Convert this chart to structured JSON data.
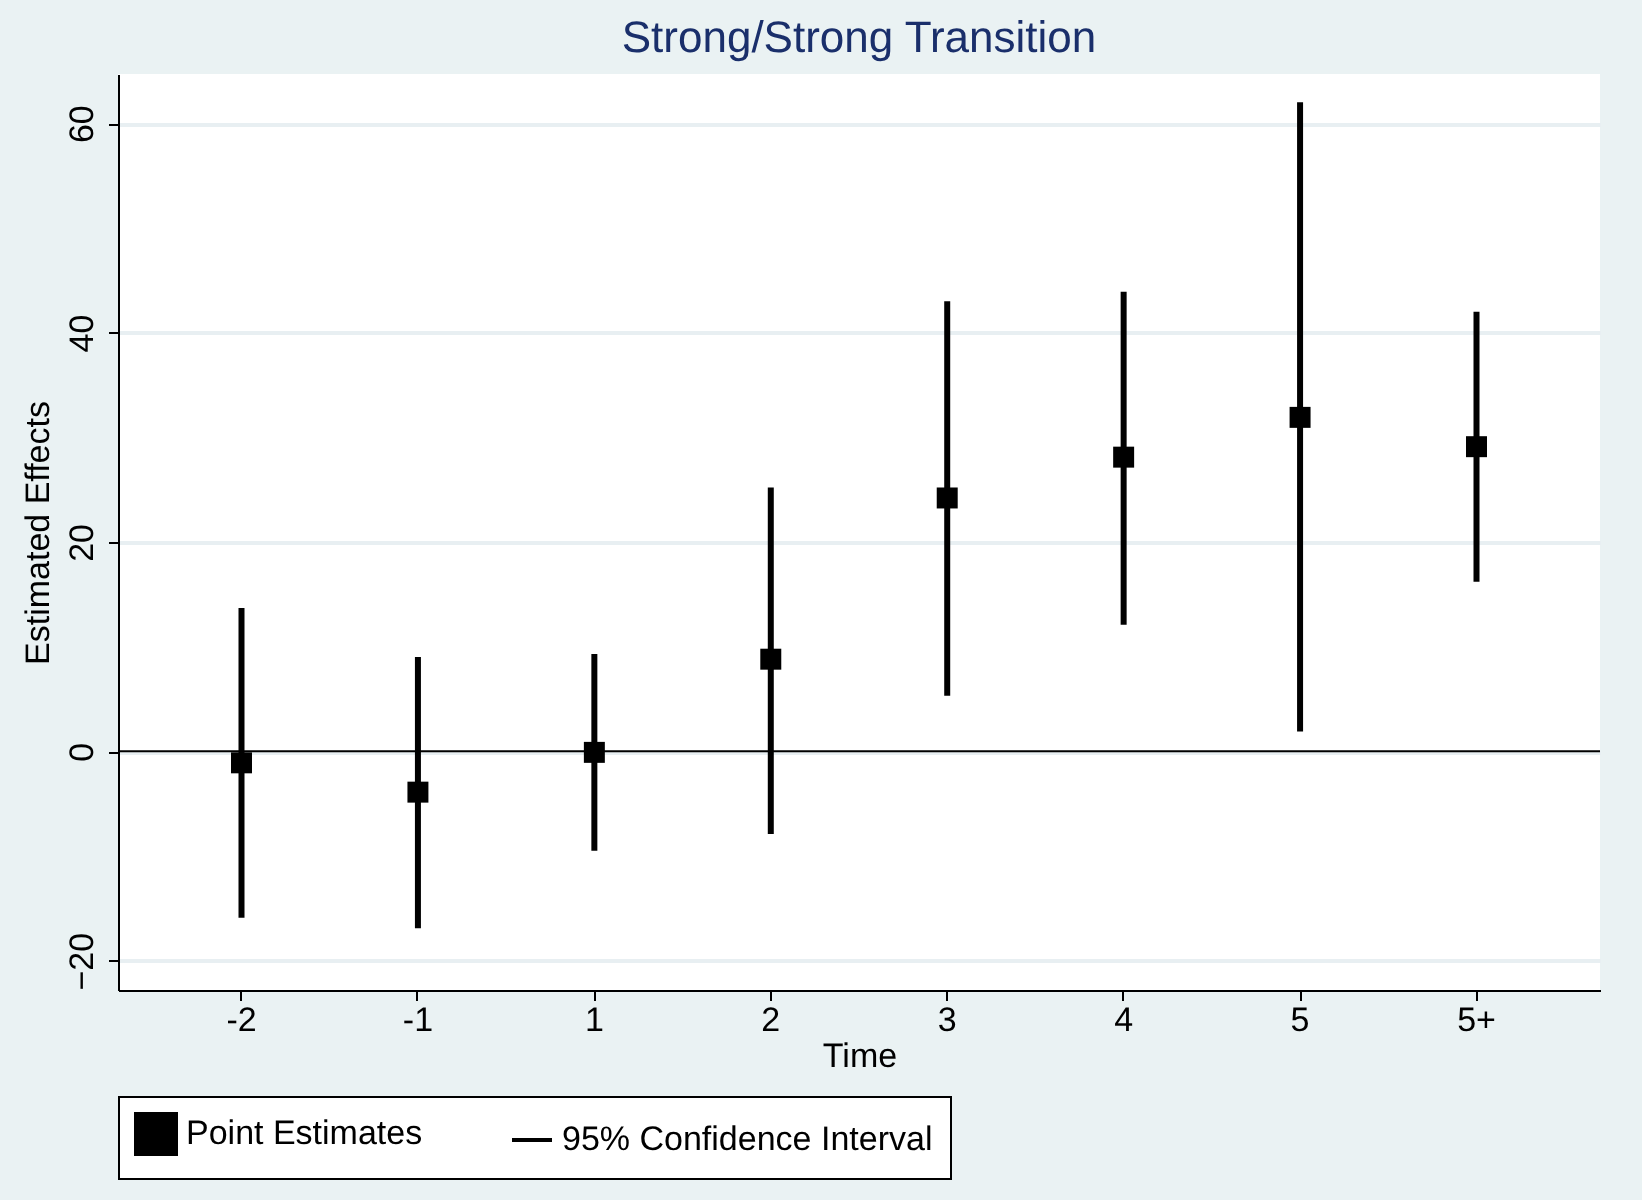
{
  "chart_data": {
    "type": "scatter",
    "title": "Strong/Strong Transition",
    "xlabel": "Time",
    "ylabel": "Estimated Effects",
    "categories": [
      "-2",
      "-1",
      "1",
      "2",
      "3",
      "4",
      "5",
      "5+"
    ],
    "series": [
      {
        "name": "Point Estimates",
        "marker": "square",
        "color": "#000000",
        "values": [
          -1.1,
          -3.9,
          -0.1,
          8.8,
          24.2,
          28.1,
          31.9,
          29.1
        ]
      },
      {
        "name": "95% Confidence Interval",
        "type": "bar",
        "color": "#000000",
        "base": [
          -15.9,
          -16.9,
          -9.5,
          -7.9,
          5.3,
          12.1,
          1.9,
          16.2
        ],
        "values": [
          29.6,
          25.9,
          18.8,
          33.1,
          37.7,
          31.8,
          60.1,
          25.8
        ]
      }
    ],
    "ylim": [
      -22.8,
      64.7
    ],
    "yticks": [
      -20,
      0,
      20,
      40,
      60
    ],
    "grid": "y",
    "legend": "bottom",
    "ref_lines": [
      {
        "axis": "y",
        "value": 0,
        "color": "#000000"
      }
    ]
  }
}
